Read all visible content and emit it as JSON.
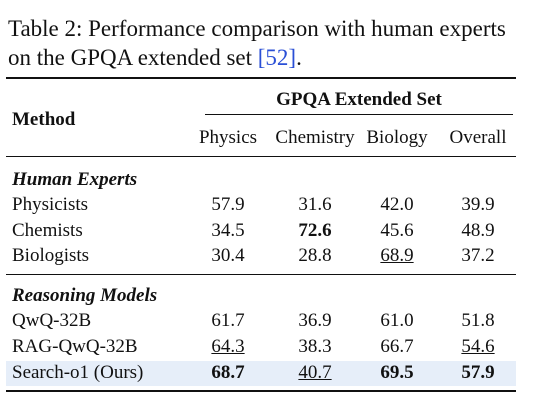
{
  "caption": {
    "text": "Table 2: Performance comparison with human experts on the GPQA extended set",
    "citation": "[52]",
    "end": "."
  },
  "table": {
    "method_header": "Method",
    "group_header": "GPQA Extended Set",
    "columns": [
      "Physics",
      "Chemistry",
      "Biology",
      "Overall"
    ],
    "sections": [
      {
        "title": "Human Experts",
        "rows": [
          {
            "method": "Physicists",
            "values": [
              "57.9",
              "31.6",
              "42.0",
              "39.9"
            ]
          },
          {
            "method": "Chemists",
            "values": [
              "34.5",
              "72.6",
              "45.6",
              "48.9"
            ],
            "bold": [
              1
            ]
          },
          {
            "method": "Biologists",
            "values": [
              "30.4",
              "28.8",
              "68.9",
              "37.2"
            ],
            "underline": [
              2
            ]
          }
        ]
      },
      {
        "title": "Reasoning Models",
        "rows": [
          {
            "method": "QwQ-32B",
            "values": [
              "61.7",
              "36.9",
              "61.0",
              "51.8"
            ]
          },
          {
            "method": "RAG-QwQ-32B",
            "values": [
              "64.3",
              "38.3",
              "66.7",
              "54.6"
            ],
            "underline": [
              0,
              3
            ]
          },
          {
            "method": "Search-o1 (Ours)",
            "values": [
              "68.7",
              "40.7",
              "69.5",
              "57.9"
            ],
            "bold": [
              0,
              2,
              3
            ],
            "underline": [
              1
            ],
            "highlight": true
          }
        ]
      }
    ]
  }
}
